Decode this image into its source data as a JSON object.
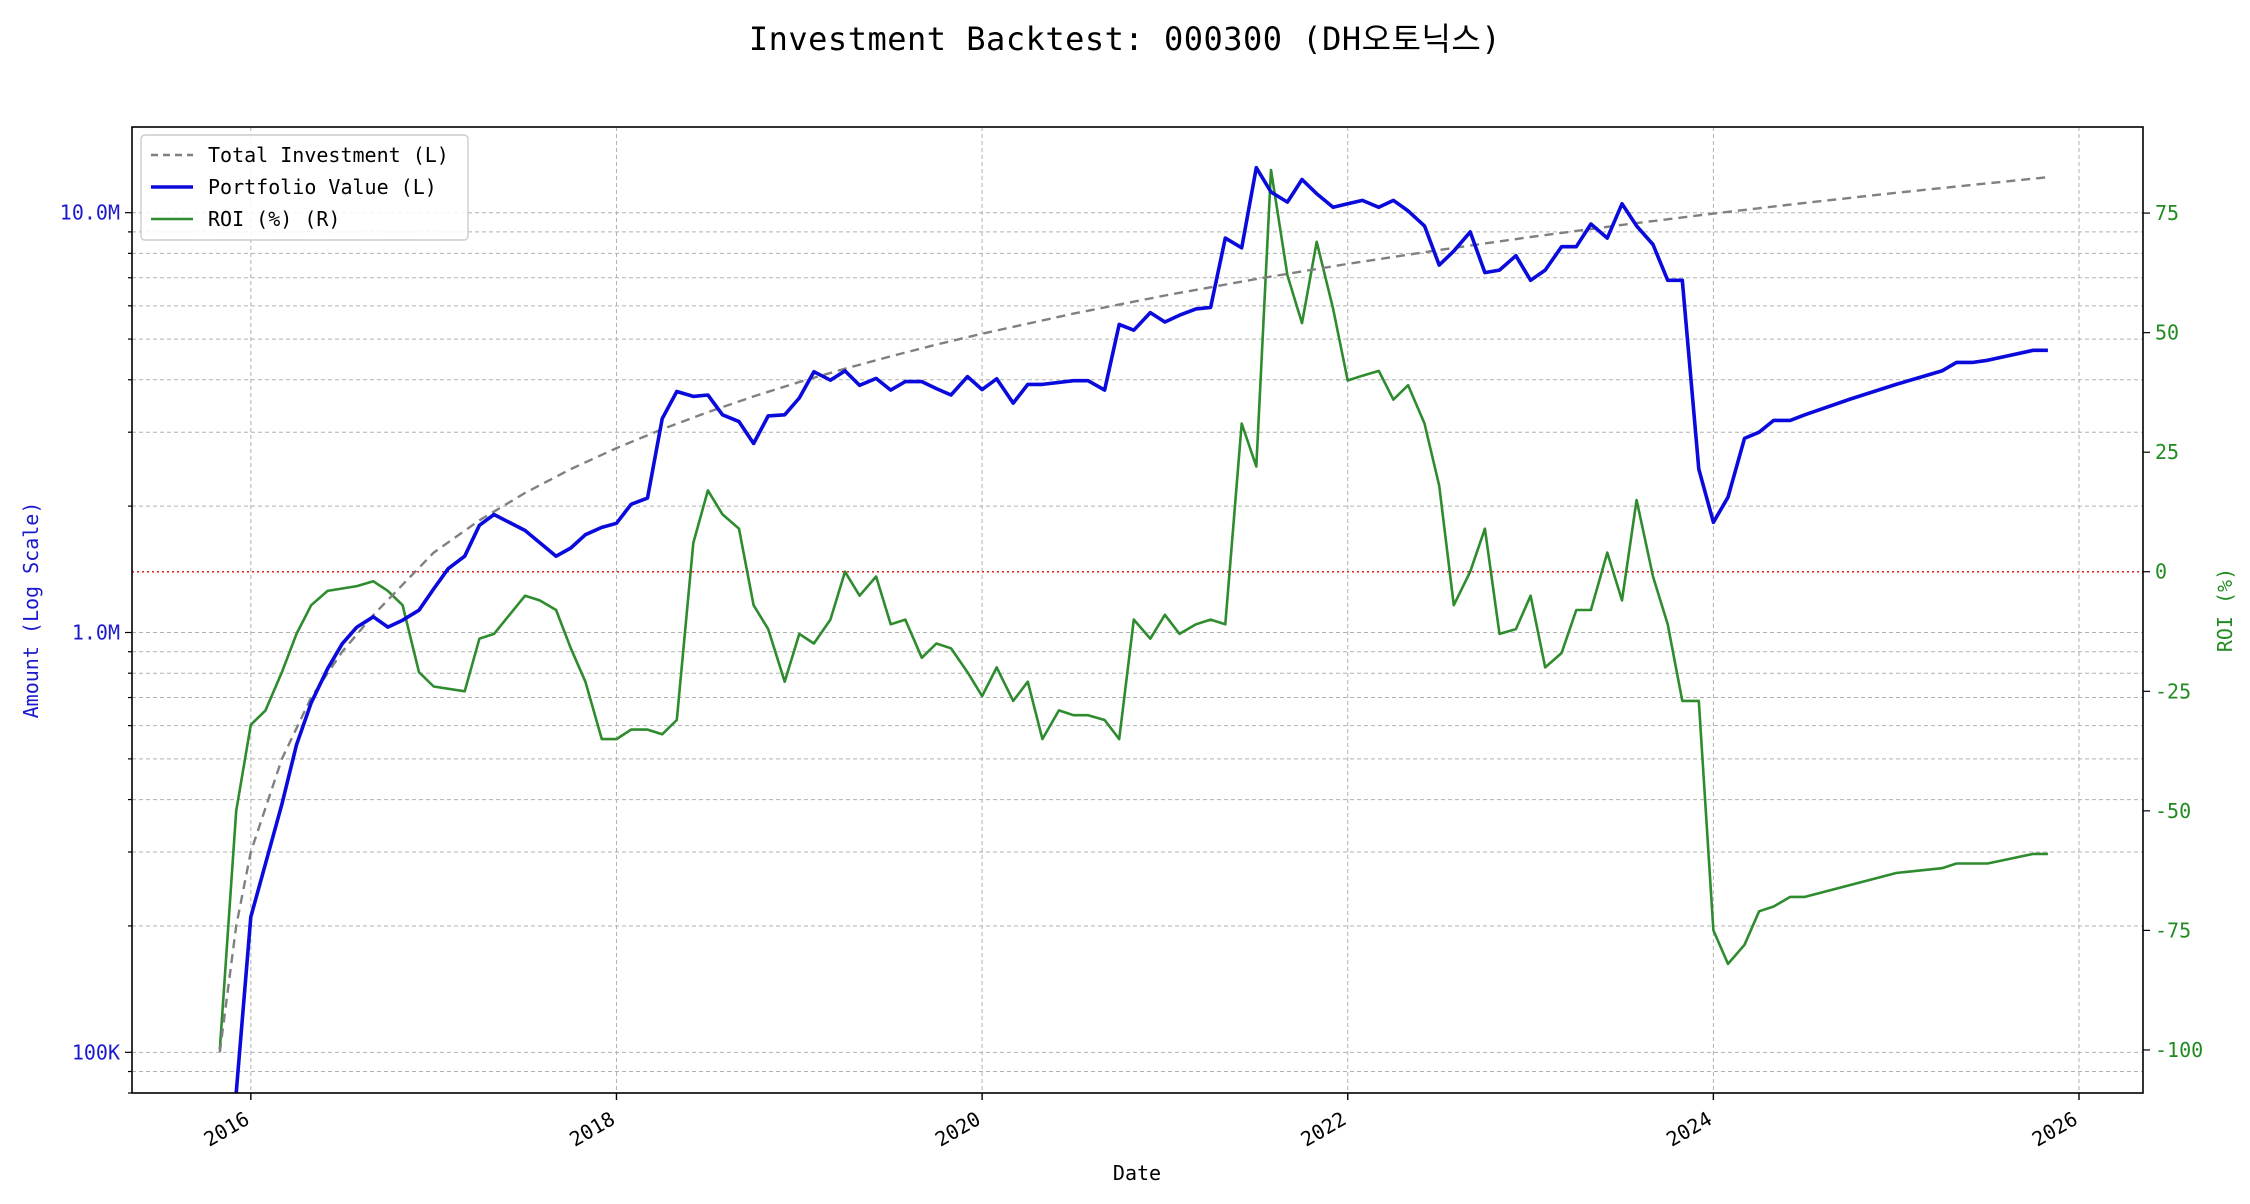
{
  "chart_data": {
    "type": "line",
    "title": "Investment Backtest: 000300 (DH오토닉스)",
    "xlabel": "Date",
    "ylabel_left": "Amount (Log Scale)",
    "ylabel_right": "ROI (%)",
    "y_left_scale": "log",
    "y_left_lim": [
      80000,
      16000000
    ],
    "y_left_ticks": [
      100000,
      1000000,
      10000000
    ],
    "y_left_tick_labels": [
      "100K",
      "1.0M",
      "10.0M"
    ],
    "y_right_lim": [
      -109,
      93
    ],
    "y_right_ticks": [
      -100,
      -75,
      -50,
      -25,
      0,
      25,
      50,
      75
    ],
    "y_right_tick_labels": [
      "-100",
      "-75",
      "-50",
      "-25",
      "0",
      "25",
      "50",
      "75"
    ],
    "x_lim": [
      2015.35,
      2026.35
    ],
    "x_ticks": [
      2016,
      2018,
      2020,
      2022,
      2024,
      2026
    ],
    "x_tick_labels": [
      "2016",
      "2018",
      "2020",
      "2022",
      "2024",
      "2026"
    ],
    "grid": true,
    "legend_position": "top-left",
    "reference_line": {
      "axis": "right",
      "value": 0,
      "style": "dotted",
      "color": "#dd2222"
    },
    "colors": {
      "left_axis": "#1a1acc",
      "right_axis": "#228b22",
      "total_investment": "#808080",
      "portfolio": "#0a0adc",
      "roi": "#2e8b2e"
    },
    "series": [
      {
        "name": "Total Investment (L)",
        "axis": "left",
        "style": "dashed",
        "x": [
          2015.83,
          2015.92,
          2016.0,
          2016.17,
          2016.33,
          2016.5,
          2016.67,
          2016.83,
          2017.0,
          2017.25,
          2017.5,
          2017.75,
          2018.0,
          2018.25,
          2018.5,
          2018.75,
          2019.0,
          2019.25,
          2019.5,
          2019.75,
          2020.0,
          2020.5,
          2021.0,
          2021.5,
          2022.0,
          2022.5,
          2023.0,
          2023.5,
          2024.0,
          2024.5,
          2025.0,
          2025.5,
          2025.83
        ],
        "y": [
          100000,
          200000,
          300000,
          500000,
          700000,
          900000,
          1100000,
          1300000,
          1550000,
          1850000,
          2150000,
          2450000,
          2750000,
          3050000,
          3350000,
          3650000,
          3950000,
          4250000,
          4550000,
          4850000,
          5150000,
          5750000,
          6350000,
          6950000,
          7550000,
          8150000,
          8750000,
          9350000,
          9950000,
          10550000,
          11150000,
          11750000,
          12150000
        ]
      },
      {
        "name": "Portfolio Value (L)",
        "axis": "left",
        "style": "solid",
        "x": [
          2015.92,
          2016.0,
          2016.17,
          2016.25,
          2016.33,
          2016.42,
          2016.5,
          2016.58,
          2016.67,
          2016.75,
          2016.83,
          2016.92,
          2017.0,
          2017.08,
          2017.17,
          2017.25,
          2017.33,
          2017.5,
          2017.67,
          2017.75,
          2017.83,
          2017.92,
          2018.0,
          2018.08,
          2018.17,
          2018.25,
          2018.33,
          2018.42,
          2018.5,
          2018.58,
          2018.67,
          2018.75,
          2018.83,
          2018.92,
          2019.0,
          2019.08,
          2019.17,
          2019.25,
          2019.33,
          2019.42,
          2019.5,
          2019.58,
          2019.67,
          2019.75,
          2019.83,
          2019.92,
          2020.0,
          2020.08,
          2020.17,
          2020.25,
          2020.33,
          2020.5,
          2020.58,
          2020.67,
          2020.75,
          2020.83,
          2020.92,
          2021.0,
          2021.08,
          2021.17,
          2021.25,
          2021.33,
          2021.42,
          2021.5,
          2021.58,
          2021.67,
          2021.75,
          2021.83,
          2021.92,
          2022.0,
          2022.08,
          2022.17,
          2022.25,
          2022.33,
          2022.42,
          2022.5,
          2022.58,
          2022.67,
          2022.75,
          2022.83,
          2022.92,
          2023.0,
          2023.08,
          2023.17,
          2023.25,
          2023.33,
          2023.42,
          2023.5,
          2023.58,
          2023.67,
          2023.75,
          2023.83,
          2023.92,
          2024.0,
          2024.08,
          2024.17,
          2024.25,
          2024.33,
          2024.42,
          2024.5,
          2024.75,
          2025.0,
          2025.25,
          2025.33,
          2025.42,
          2025.5,
          2025.75,
          2025.83
        ],
        "y": [
          80000,
          210000,
          390000,
          540000,
          680000,
          820000,
          940000,
          1030000,
          1090000,
          1030000,
          1070000,
          1130000,
          1270000,
          1420000,
          1520000,
          1800000,
          1910000,
          1750000,
          1520000,
          1590000,
          1710000,
          1780000,
          1820000,
          2020000,
          2090000,
          3230000,
          3750000,
          3650000,
          3680000,
          3300000,
          3180000,
          2820000,
          3280000,
          3300000,
          3620000,
          4180000,
          3990000,
          4200000,
          3880000,
          4030000,
          3780000,
          3960000,
          3960000,
          3810000,
          3680000,
          4070000,
          3790000,
          4020000,
          3520000,
          3900000,
          3900000,
          3980000,
          3980000,
          3780000,
          5420000,
          5250000,
          5780000,
          5490000,
          5700000,
          5900000,
          5950000,
          8700000,
          8250000,
          12800000,
          11200000,
          10600000,
          12000000,
          11100000,
          10300000,
          10500000,
          10700000,
          10300000,
          10700000,
          10100000,
          9300000,
          7500000,
          8100000,
          9000000,
          7200000,
          7300000,
          7900000,
          6900000,
          7300000,
          8300000,
          8300000,
          9400000,
          8700000,
          10500000,
          9300000,
          8400000,
          6900000,
          6900000,
          2450000,
          1830000,
          2100000,
          2900000,
          3000000,
          3200000,
          3200000,
          3300000,
          3600000,
          3900000,
          4200000,
          4400000,
          4400000,
          4450000,
          4700000,
          4700000
        ]
      },
      {
        "name": "ROI (%) (R)",
        "axis": "right",
        "style": "solid",
        "x": [
          2015.83,
          2015.92,
          2016.0,
          2016.08,
          2016.17,
          2016.25,
          2016.33,
          2016.42,
          2016.58,
          2016.67,
          2016.75,
          2016.83,
          2016.92,
          2017.0,
          2017.17,
          2017.25,
          2017.33,
          2017.5,
          2017.58,
          2017.67,
          2017.75,
          2017.83,
          2017.92,
          2018.0,
          2018.08,
          2018.17,
          2018.25,
          2018.33,
          2018.42,
          2018.5,
          2018.58,
          2018.67,
          2018.75,
          2018.83,
          2018.92,
          2019.0,
          2019.08,
          2019.17,
          2019.25,
          2019.33,
          2019.42,
          2019.5,
          2019.58,
          2019.67,
          2019.75,
          2019.83,
          2019.92,
          2020.0,
          2020.08,
          2020.17,
          2020.25,
          2020.33,
          2020.42,
          2020.5,
          2020.58,
          2020.67,
          2020.75,
          2020.83,
          2020.92,
          2021.0,
          2021.08,
          2021.17,
          2021.25,
          2021.33,
          2021.42,
          2021.5,
          2021.58,
          2021.67,
          2021.75,
          2021.83,
          2021.92,
          2022.0,
          2022.08,
          2022.17,
          2022.25,
          2022.33,
          2022.42,
          2022.5,
          2022.58,
          2022.67,
          2022.75,
          2022.83,
          2022.92,
          2023.0,
          2023.08,
          2023.17,
          2023.25,
          2023.33,
          2023.42,
          2023.5,
          2023.58,
          2023.67,
          2023.75,
          2023.83,
          2023.92,
          2024.0,
          2024.08,
          2024.17,
          2024.25,
          2024.33,
          2024.42,
          2024.5,
          2025.0,
          2025.25,
          2025.33,
          2025.42,
          2025.5,
          2025.75,
          2025.83
        ],
        "y": [
          -100,
          -50,
          -32,
          -29,
          -21,
          -13,
          -7,
          -4,
          -3,
          -2,
          -4,
          -7,
          -21,
          -24,
          -25,
          -14,
          -13,
          -5,
          -6,
          -8,
          -16,
          -23,
          -35,
          -35,
          -33,
          -33,
          -34,
          -31,
          6,
          17,
          12,
          9,
          -7,
          -12,
          -23,
          -13,
          -15,
          -10,
          0,
          -5,
          -1,
          -11,
          -10,
          -18,
          -15,
          -16,
          -21,
          -26,
          -20,
          -27,
          -23,
          -35,
          -29,
          -30,
          -30,
          -31,
          -35,
          -10,
          -14,
          -9,
          -13,
          -11,
          -10,
          -11,
          31,
          22,
          84,
          62,
          52,
          69,
          55,
          40,
          41,
          42,
          36,
          39,
          31,
          18,
          -7,
          0,
          9,
          -13,
          -12,
          -5,
          -20,
          -17,
          -8,
          -8,
          4,
          -6,
          15,
          -1,
          -11,
          -27,
          -27,
          -75,
          -82,
          -78,
          -71,
          -70,
          -68,
          -68,
          -63,
          -62,
          -61,
          -61,
          -61,
          -59,
          -59
        ]
      }
    ]
  }
}
